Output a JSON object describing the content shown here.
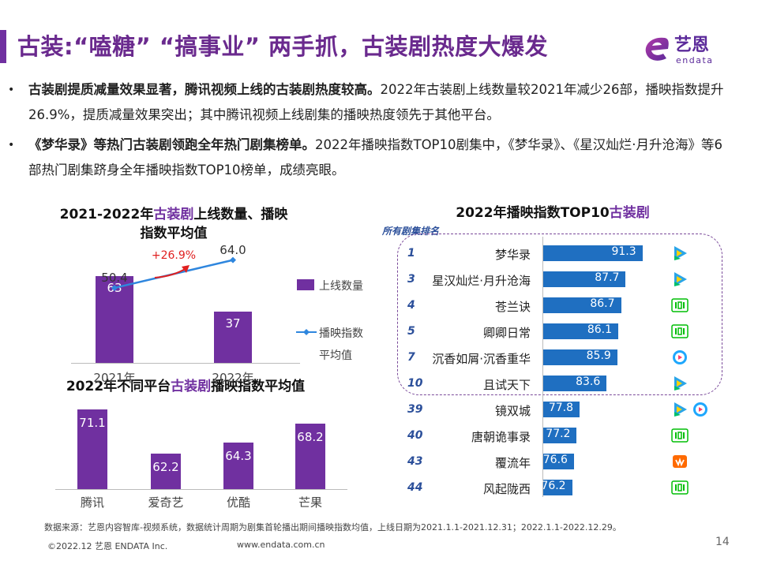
{
  "header": {
    "title": "古装:“嗑糖” “搞事业” 两手抓，古装剧热度大爆发",
    "logo_text": "艺恩",
    "logo_sub": "endata"
  },
  "bullets": [
    {
      "bold": "古装剧提质减量效果显著，腾讯视频上线的古装剧热度较高。",
      "rest": "2022年古装剧上线数量较2021年减少26部，播映指数提升26.9%，提质减量效果突出；其中腾讯视频上线剧集的播映热度领先于其他平台。"
    },
    {
      "bold": "《梦华录》等热门古装剧领跑全年热门剧集榜单。",
      "rest": "2022年播映指数TOP10剧集中，《梦华录》、《星汉灿烂·月升沧海》等6部热门剧集跻身全年播映指数TOP10榜单，成绩亮眼。"
    }
  ],
  "chart_data": [
    {
      "type": "bar",
      "title_pre": "2021-2022年",
      "title_hl": "古装剧",
      "title_post": "上线数量、播映",
      "title_line2": "指数平均值",
      "categories": [
        "2021年",
        "2022年"
      ],
      "series": [
        {
          "name": "上线数量",
          "values": [
            63,
            37
          ]
        },
        {
          "name": "播映指数平均值",
          "values": [
            50.4,
            64.0
          ],
          "display": [
            "50.4",
            "64.0"
          ]
        }
      ],
      "legend": [
        "上线数量",
        "播映指",
        "数",
        "平均值"
      ],
      "annotation": "+26.9%"
    },
    {
      "type": "bar",
      "title_pre": "2022年不同平台",
      "title_hl": "古装剧",
      "title_post": "播映指数平均值",
      "categories": [
        "腾讯",
        "爱奇艺",
        "优酷",
        "芒果"
      ],
      "values": [
        71.1,
        62.2,
        64.3,
        68.2
      ]
    },
    {
      "type": "bar",
      "title_pre": "2022年播映指数TOP10",
      "title_hl": "古装剧",
      "caption": "所有剧集排名",
      "items": [
        {
          "rank": "1",
          "name": "梦华录",
          "value": 91.3,
          "label": "91.3",
          "platforms": [
            "tencent"
          ]
        },
        {
          "rank": "3",
          "name": "星汉灿烂·月升沧海",
          "value": 87.7,
          "label": "87.7",
          "platforms": [
            "tencent"
          ]
        },
        {
          "rank": "4",
          "name": "苍兰诀",
          "value": 86.7,
          "label": "86.7",
          "platforms": [
            "iqiyi"
          ]
        },
        {
          "rank": "5",
          "name": "卿卿日常",
          "value": 86.1,
          "label": "86.1",
          "platforms": [
            "iqiyi"
          ]
        },
        {
          "rank": "7",
          "name": "沉香如屑·沉香重华",
          "value": 85.9,
          "label": "85.9",
          "platforms": [
            "youku"
          ]
        },
        {
          "rank": "10",
          "name": "且试天下",
          "value": 83.6,
          "label": "83.6",
          "platforms": [
            "tencent"
          ]
        },
        {
          "rank": "39",
          "name": "镜双城",
          "value": 77.8,
          "label": "77.8",
          "platforms": [
            "tencent",
            "youku"
          ]
        },
        {
          "rank": "40",
          "name": "唐朝诡事录",
          "value": 77.2,
          "label": "77.2",
          "platforms": [
            "iqiyi"
          ]
        },
        {
          "rank": "43",
          "name": "覆流年",
          "value": 76.6,
          "label": "76.6",
          "platforms": [
            "mango"
          ]
        },
        {
          "rank": "44",
          "name": "风起陇西",
          "value": 76.2,
          "label": "76.2",
          "platforms": [
            "iqiyi"
          ]
        }
      ]
    }
  ],
  "footer": {
    "source": "数据来源：艺恩内容智库-视频系统，数据统计周期为剧集首轮播出期间播映指数均值，上线日期为2021.1.1-2021.12.31；2022.1.1-2022.12.29。",
    "copyright": "©2022.12 艺恩 ENDATA Inc.",
    "website": "www.endata.com.cn",
    "page": "14"
  },
  "colors": {
    "purple": "#7030a0",
    "blue": "#1f6fc1",
    "line": "#2e86de",
    "red": "#e02020"
  }
}
